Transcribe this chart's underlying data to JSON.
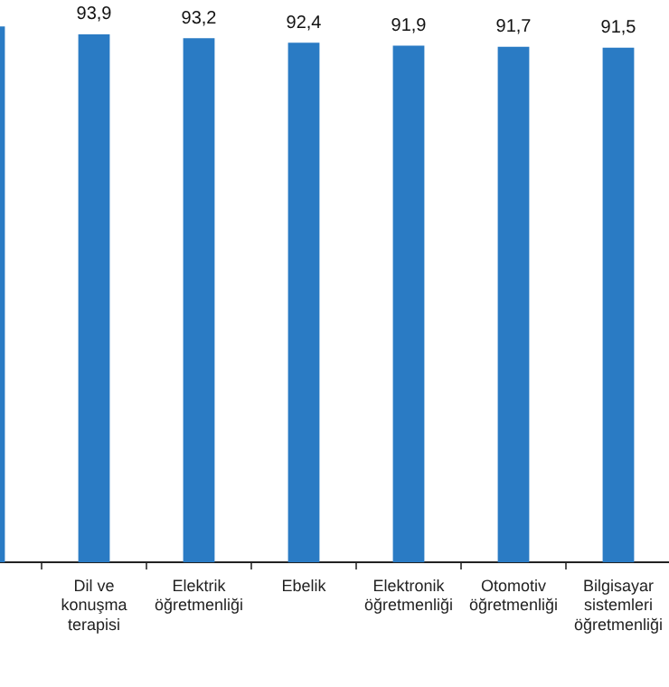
{
  "chart_data": {
    "type": "bar",
    "categories": [
      null,
      "Dil ve konuşma terapisi",
      "Elektrik öğretmenliği",
      "Ebelik",
      "Elektronik öğretmenliği",
      "Otomotiv öğretmenliği",
      "Bilgisayar sistemleri öğretmenliği"
    ],
    "values": [
      95.3,
      93.9,
      93.2,
      92.4,
      91.9,
      91.7,
      91.5
    ],
    "value_labels": [
      null,
      "93,9",
      "93,2",
      "92,4",
      "91,9",
      "91,7",
      "91,5"
    ],
    "color": "#2a7bc4",
    "tick_labels": "x",
    "grid": false,
    "legend": false
  }
}
